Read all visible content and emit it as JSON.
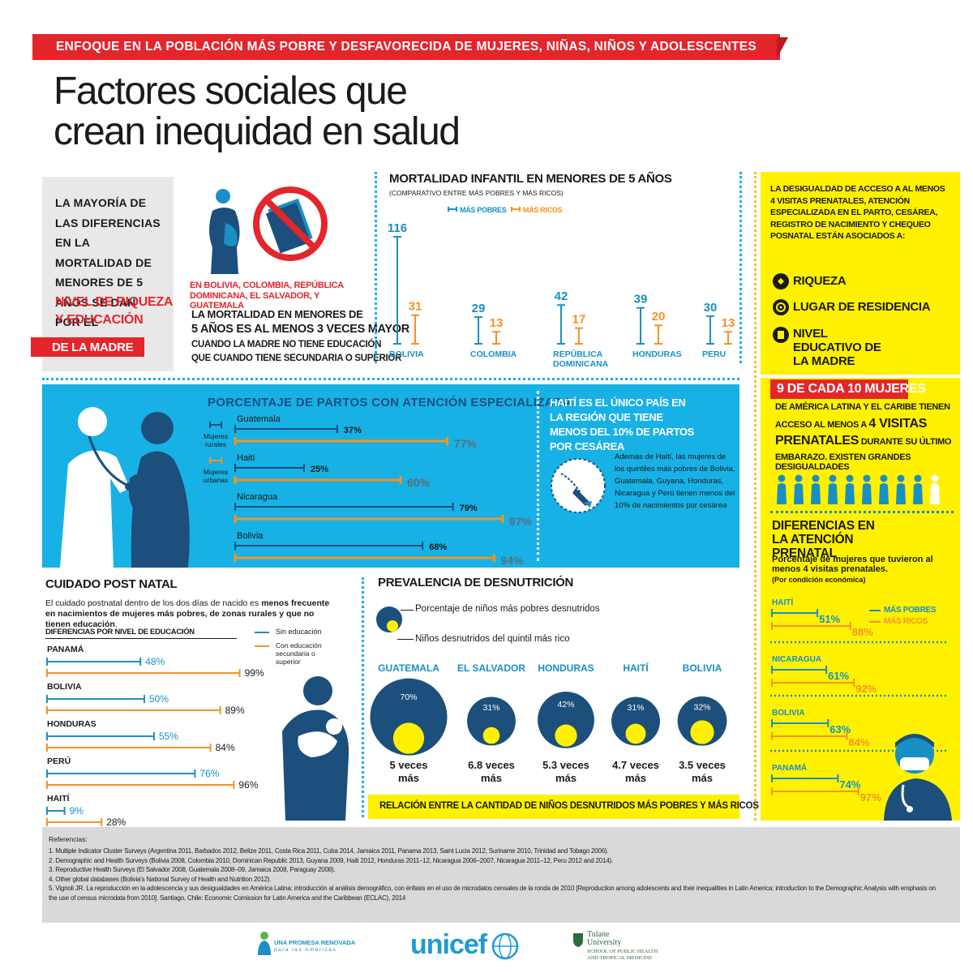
{
  "banner": "ENFOQUE EN LA POBLACIÓN MÁS POBRE Y DESFAVORECIDA DE MUJERES, NIÑAS, NIÑOS Y ADOLESCENTES",
  "title": {
    "line1": "Factores sociales que",
    "line2": "crean inequidad en salud"
  },
  "intro": {
    "main": "LA MAYORÍA DE LAS DIFERENCIAS EN LA MORTALIDAD DE MENORES DE 5 AÑOS SE DAN POR EL",
    "highlight1": "NIVEL DE RIQUEZA",
    "highlight2": "Y EDUCACIÓN",
    "badge": "DE LA MADRE"
  },
  "mother": {
    "countries": "EN BOLIVIA, COLOMBIA, REPÚBLICA DOMINICANA, EL SALVADOR, Y GUATEMALA",
    "line1": "LA MORTALIDAD EN MENORES DE",
    "line2": "5 AÑOS ES AL MENOS 3 VECES MAYOR",
    "line3": "CUANDO LA MADRE NO TIENE EDUCACIÓN",
    "line4": "QUE CUANDO TIENE SECUNDARIA O SUPERIOR"
  },
  "mortality": {
    "title": "MORTALIDAD INFANTIL EN MENORES DE 5 AÑOS",
    "subtitle": "(COMPARATIVO ENTRE MÁS POBRES Y MÁS RICOS)",
    "legend_poor": "MÁS POBRES",
    "legend_rich": "MÁS RICOS",
    "countries": [
      {
        "name": "BOLIVIA",
        "poor": 116,
        "rich": 31
      },
      {
        "name": "COLOMBIA",
        "poor": 29,
        "rich": 13
      },
      {
        "name": "REPÚBLICA DOMINICANA",
        "poor": 42,
        "rich": 17
      },
      {
        "name": "HONDURAS",
        "poor": 39,
        "rich": 20
      },
      {
        "name": "PERU",
        "poor": 30,
        "rich": 13
      }
    ]
  },
  "right_panel": {
    "intro": "LA DESIGUALDAD DE ACCESO A AL MENOS 4 VISITAS PRENATALES, ATENCIÓN ESPECIALIZADA EN EL PARTO, CESÁREA, REGISTRO DE NACIMIENTO Y CHEQUEO POSNATAL ESTÁN ASOCIADOS A:",
    "factors": [
      "RIQUEZA",
      "LUGAR DE RESIDENCIA",
      "NIVEL EDUCATIVO DE LA MADRE"
    ],
    "highlight": "9 DE CADA 10 MUJERES",
    "text1": "DE AMÉRICA LATINA Y EL CARIBE TIENEN",
    "text2": "ACCESO AL MENOS A",
    "text2b": "4 VISITAS",
    "text3": "PRENATALES",
    "text3b": "DURANTE SU ÚLTIMO",
    "text4": "EMBARAZO. EXISTEN GRANDES DESIGUALDADES",
    "prenatal_title": "DIFERENCIAS EN LA ATENCIÓN PRENATAL",
    "prenatal_sub": "Porcentaje de mujeres que tuvieron al menos 4 visitas prenatales.",
    "prenatal_sub2": "(Por condición económica)",
    "legend_poor": "MÁS POBRES",
    "legend_rich": "MÁS RICOS",
    "prenatal": [
      {
        "name": "HAITÍ",
        "poor": "51%",
        "rich": "88%"
      },
      {
        "name": "NICARAGUA",
        "poor": "61%",
        "rich": "92%"
      },
      {
        "name": "BOLIVIA",
        "poor": "63%",
        "rich": "84%"
      },
      {
        "name": "PANAMÁ",
        "poor": "74%",
        "rich": "97%"
      }
    ]
  },
  "births": {
    "title": "PORCENTAJE DE PARTOS CON ATENCIÓN ESPECIALIZADA",
    "legend_rural": "Mujeres rurales",
    "legend_urban": "Mujeres urbanas",
    "rows": [
      {
        "name": "Guatemala",
        "rural": "37%",
        "urban": "77%"
      },
      {
        "name": "Haití",
        "rural": "25%",
        "urban": "60%"
      },
      {
        "name": "Nicaragua",
        "rural": "79%",
        "urban": "97%"
      },
      {
        "name": "Bolivia",
        "rural": "68%",
        "urban": "94%"
      }
    ]
  },
  "haiti": {
    "headline": "HAITÍ ES EL ÚNICO PAÍS EN LA REGIÓN QUE TIENE MENOS DEL 10% DE PARTOS POR CESÁREA",
    "body": "Además de Haití, las mujeres de los quintiles más pobres de Bolivia, Guatemala, Guyana, Honduras, Nicaragua y Perú tienen menos del 10% de nacimientos por cesárea"
  },
  "postnatal": {
    "title": "CUIDADO POST NATAL",
    "intro_a": "El cuidado postnatal dentro de los dos días de nacido es ",
    "intro_b": "menos frecuente en nacimientos de mujeres más pobres, de zonas rurales y que no tienen educación",
    "intro_c": ".",
    "subtitle": "DIFERENCIAS POR NIVEL DE EDUCACIÓN",
    "legend_none": "Sin educación",
    "legend_edu": "Con educación secundaria o superior",
    "rows": [
      {
        "name": "PANAMÁ",
        "none": "48%",
        "edu": "99%"
      },
      {
        "name": "BOLIVIA",
        "none": "50%",
        "edu": "89%"
      },
      {
        "name": "HONDURAS",
        "none": "55%",
        "edu": "84%"
      },
      {
        "name": "PERÚ",
        "none": "76%",
        "edu": "96%"
      },
      {
        "name": "HAITÍ",
        "none": "9%",
        "edu": "28%"
      }
    ]
  },
  "malnutrition": {
    "title": "PREVALENCIA DE DESNUTRICIÓN",
    "legend_poor": "Porcentaje de niños más pobres desnutridos",
    "legend_rich": "Niños desnutridos del quintil más rico",
    "countries": [
      {
        "name": "GUATEMALA",
        "pct": "70%",
        "ratio": "5 veces más"
      },
      {
        "name": "EL SALVADOR",
        "pct": "31%",
        "ratio": "6.8 veces más"
      },
      {
        "name": "HONDURAS",
        "pct": "42%",
        "ratio": "5.3 veces más"
      },
      {
        "name": "HAITÍ",
        "pct": "31%",
        "ratio": "4.7 veces más"
      },
      {
        "name": "BOLIVIA",
        "pct": "32%",
        "ratio": "3.5 veces más"
      }
    ],
    "footer": "RELACIÓN ENTRE LA CANTIDAD DE NIÑOS DESNUTRIDOS MÁS POBRES Y MÁS RICOS"
  },
  "references": {
    "heading": "Referencias:",
    "items": [
      "1. Multiple Indicator Cluster Surveys (Argentina 2011, Barbados 2012, Belize 2011, Costa Rica 2011, Cuba 2014, Jamaica 2011, Panama 2013, Saint Lucia 2012, Suriname 2010, Trinidad and Tobago 2006).",
      "2. Demographic and Health Surveys (Bolivia 2008, Colombia 2010, Dominican Republic 2013, Guyana 2009, Haiti 2012, Honduras 2011–12, Nicaragua 2006–2007, Nicaragua 2011–12, Peru 2012 and 2014).",
      "3. Reproductive Health Surveys (El Salvador 2008, Guatemala 2008–09, Jamaica 2008, Paraguay 2008).",
      "4. Other global databases (Bolivia's National Survey of Health and Nutrition 2012).",
      "5. Vignoli JR. La reproducción en la adolescencia y sus desigualdades en América Latina: introducción al análisis demográfico, con énfasis en el uso de microdatos censales de la ronda de 2010 [Reproduction among adolescents and their inequalities in Latin America: introduction to the Demographic Analysis with emphasis on the use of census microdata from 2010]. Santiago, Chile: Economic Comission for Latin America and the Caribbean (ECLAC), 2014"
    ]
  },
  "logos": {
    "promesa": "UNA PROMESA RENOVADA",
    "promesa_sub": "para las Américas",
    "unicef": "unicef",
    "tulane": "Tulane University",
    "tulane_sub1": "SCHOOL OF PUBLIC HEALTH",
    "tulane_sub2": "AND TROPICAL MEDICINE"
  },
  "colors": {
    "red": "#e3262b",
    "navy": "#1c4f7c",
    "orange": "#f39323",
    "cyan": "#17b1e5",
    "yellow": "#fff100",
    "dark": "#1a1a1a"
  }
}
